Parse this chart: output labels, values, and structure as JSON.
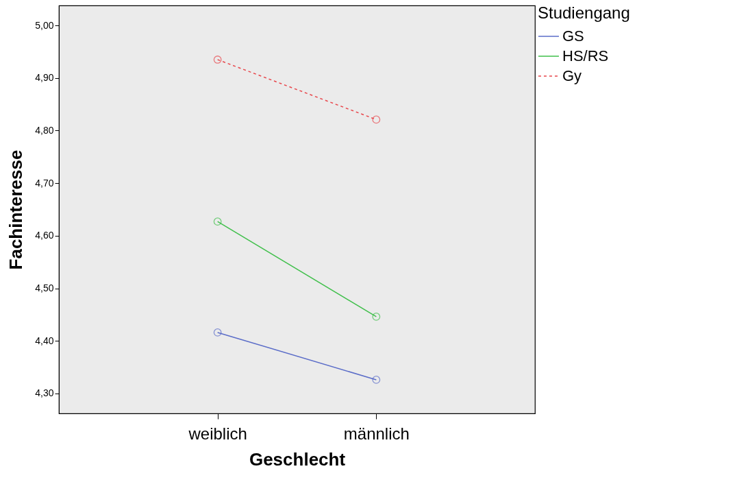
{
  "chart_data": {
    "type": "line",
    "xlabel": "Geschlecht",
    "ylabel": "Fachinteresse",
    "legend_title": "Studiengang",
    "legend": "top right",
    "marker": "circle",
    "grid": false,
    "categories": [
      "weiblich",
      "männlich"
    ],
    "ylim": [
      4.262,
      5.038
    ],
    "yticks": [
      {
        "value": 4.3,
        "label": "4,30"
      },
      {
        "value": 4.4,
        "label": "4,40"
      },
      {
        "value": 4.5,
        "label": "4,50"
      },
      {
        "value": 4.6,
        "label": "4,60"
      },
      {
        "value": 4.7,
        "label": "4,70"
      },
      {
        "value": 4.8,
        "label": "4,80"
      },
      {
        "value": 4.9,
        "label": "4,90"
      },
      {
        "value": 5.0,
        "label": "5,00"
      }
    ],
    "series": [
      {
        "name": "GS",
        "color": "#5a6cc8",
        "line_style": "solid",
        "values": [
          4.416,
          4.326
        ]
      },
      {
        "name": "HS/RS",
        "color": "#3fbf4a",
        "line_style": "solid",
        "values": [
          4.627,
          4.446
        ]
      },
      {
        "name": "Gy",
        "color": "#e8474c",
        "line_style": "dashed",
        "values": [
          4.935,
          4.821
        ]
      }
    ]
  }
}
